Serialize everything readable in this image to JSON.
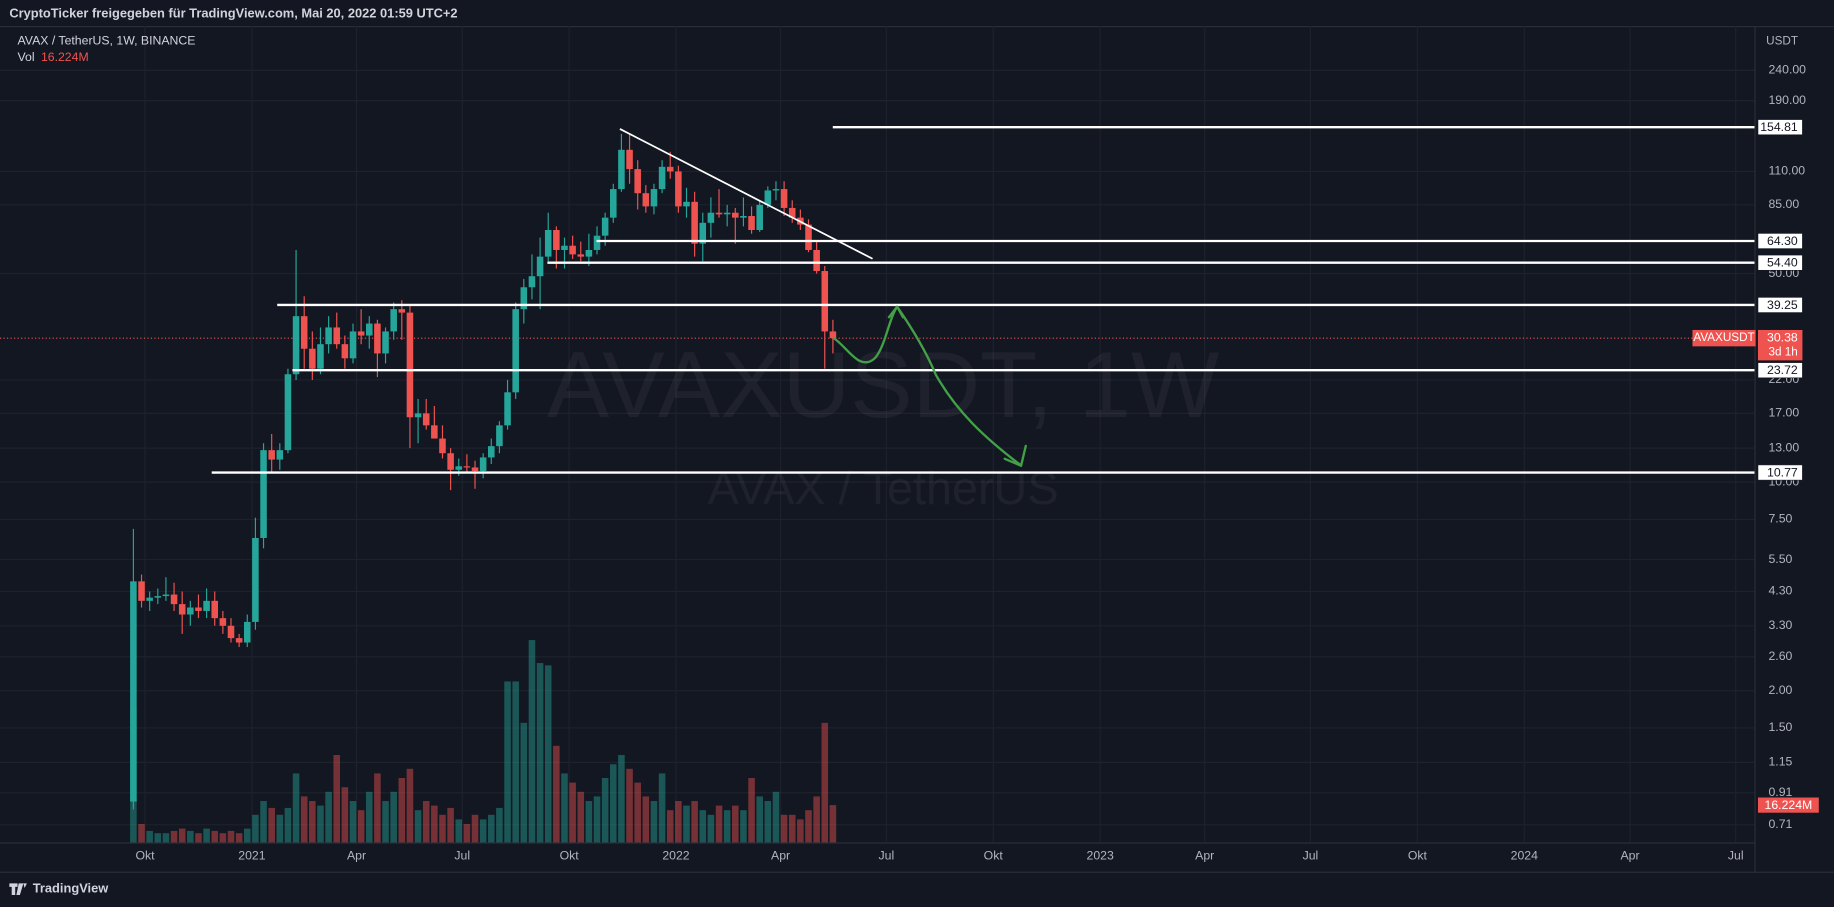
{
  "chart_data": {
    "type": "candlestick",
    "header": "CryptoTicker freigegeben für TradingView.com, Mai 20, 2022 01:59 UTC+2",
    "title": "AVAX / TetherUS, 1W, BINANCE",
    "volume_title": "Vol",
    "volume_label": "16.224M",
    "watermark": "AVAXUSDT, 1W",
    "watermark_sub": "AVAX / TetherUS",
    "y_axis_unit": "USDT",
    "footer": "TradingView",
    "symbol_label": "AVAXUSDT",
    "last_price": 30.38,
    "countdown": "3d 1h",
    "up_color": "#26a69a",
    "down_color": "#ef5350",
    "log_scale": true,
    "grid": true,
    "open": [
      0.85,
      4.65,
      4.0,
      4.1,
      4.15,
      4.2,
      3.9,
      3.6,
      3.8,
      3.7,
      4.0,
      3.5,
      3.3,
      3.0,
      2.9,
      3.4,
      6.5,
      12.8,
      11.9,
      12.8,
      23,
      36,
      28,
      24,
      29,
      33,
      29,
      26,
      32,
      31,
      34,
      27,
      32,
      38,
      37,
      16.5,
      17,
      15.5,
      14,
      12.5,
      11,
      11.3,
      11.2,
      10.9,
      12.1,
      13.2,
      15.5,
      20,
      38,
      45,
      49,
      57,
      70,
      60,
      62,
      58,
      57,
      60,
      67,
      77,
      96,
      130,
      112,
      93,
      84,
      96,
      114,
      110,
      84,
      87,
      63,
      74,
      80,
      79,
      80,
      77,
      78,
      70,
      85,
      95,
      96,
      83,
      77,
      73,
      60,
      51,
      32
    ],
    "high": [
      6.97,
      4.9,
      4.3,
      4.4,
      4.8,
      4.6,
      4.3,
      4.0,
      4.2,
      4.4,
      4.3,
      3.7,
      3.5,
      3.1,
      3.6,
      7.6,
      13.5,
      14.5,
      13.5,
      24,
      60,
      42,
      32,
      33,
      36,
      37,
      31,
      34,
      38,
      36,
      35,
      33,
      40,
      40.7,
      39,
      19,
      19,
      18,
      15.5,
      13,
      12,
      12.4,
      11.8,
      12.5,
      14,
      16,
      22,
      40,
      48,
      58,
      66,
      80,
      72,
      66,
      67,
      64,
      68,
      72,
      80,
      100,
      147,
      146,
      120,
      99,
      100,
      120,
      128,
      115,
      97,
      94,
      80,
      90,
      96,
      85,
      83,
      90,
      84,
      88,
      98,
      102,
      102,
      88,
      82,
      76,
      64,
      53,
      35
    ],
    "low": [
      0.8,
      3.8,
      3.7,
      3.9,
      4.0,
      3.7,
      3.1,
      3.3,
      3.5,
      3.5,
      3.3,
      3.1,
      2.9,
      2.8,
      2.8,
      3.2,
      6.0,
      10.8,
      11,
      12.5,
      22,
      24,
      22,
      23,
      27,
      28,
      24,
      25,
      29,
      28,
      22.5,
      25,
      30,
      30,
      13,
      13.5,
      15,
      14,
      12,
      9.4,
      10.5,
      10.8,
      9.5,
      10.3,
      11.5,
      12.5,
      15,
      19,
      34,
      41,
      38,
      55,
      52,
      52,
      56,
      55,
      53,
      58,
      62,
      74,
      94,
      100,
      82,
      80,
      79,
      93,
      104,
      80,
      77,
      57,
      55,
      66,
      77,
      72,
      63,
      72,
      68,
      69,
      83,
      88,
      78,
      74,
      70,
      59,
      50,
      24,
      27
    ],
    "close": [
      4.65,
      4.0,
      4.1,
      4.15,
      4.2,
      3.9,
      3.6,
      3.8,
      3.7,
      4.0,
      3.5,
      3.3,
      3.0,
      2.9,
      3.4,
      6.5,
      12.8,
      11.9,
      12.8,
      23,
      36,
      28,
      24,
      29,
      33,
      29,
      26,
      32,
      31,
      34,
      27,
      32,
      38,
      37,
      16.5,
      17,
      15.5,
      14,
      12.5,
      11,
      11.3,
      11.2,
      10.9,
      12.1,
      13.2,
      15.5,
      20,
      38,
      45,
      49,
      57,
      70,
      60,
      62,
      58,
      57,
      60,
      67,
      77,
      96,
      130,
      112,
      93,
      84,
      96,
      114,
      110,
      84,
      87,
      63,
      74,
      80,
      79,
      80,
      77,
      78,
      70,
      85,
      95,
      96,
      83,
      77,
      73,
      60,
      51,
      32,
      30.38
    ],
    "volume": [
      58,
      8,
      5,
      4,
      4,
      5,
      6,
      5,
      4,
      6,
      5,
      4,
      5,
      4,
      6,
      12,
      18,
      15,
      12,
      15,
      30,
      20,
      18,
      16,
      22,
      38,
      24,
      18,
      14,
      22,
      30,
      18,
      22,
      28,
      32,
      14,
      18,
      16,
      12,
      15,
      10,
      8,
      12,
      10,
      12,
      15,
      70,
      70,
      52,
      88,
      78,
      77,
      42,
      30,
      26,
      22,
      18,
      20,
      28,
      34,
      38,
      32,
      26,
      20,
      18,
      30,
      14,
      18,
      16,
      18,
      14,
      12,
      16,
      14,
      16,
      14,
      28,
      20,
      18,
      22,
      12,
      12,
      10,
      14,
      20,
      52,
      16.224
    ],
    "levels": [
      154.81,
      {
        "value": 64.3,
        "label": "64.30"
      },
      {
        "value": 54.4,
        "label": "54.40"
      },
      39.25,
      23.72,
      10.77
    ],
    "ylim": [
      0.62,
      338
    ],
    "yticks": [
      {
        "value": 240,
        "label": "240.00"
      },
      {
        "value": 190,
        "label": "190.00"
      },
      {
        "value": 110,
        "label": "110.00"
      },
      {
        "value": 85,
        "label": "85.00"
      },
      {
        "value": 50,
        "label": "50.00"
      },
      {
        "value": 22,
        "label": "22.00"
      },
      {
        "value": 17,
        "label": "17.00"
      },
      {
        "value": 13,
        "label": "13.00"
      },
      {
        "value": 10,
        "label": "10.00"
      },
      {
        "value": 7.5,
        "label": "7.50"
      },
      {
        "value": 5.5,
        "label": "5.50"
      },
      {
        "value": 4.3,
        "label": "4.30"
      },
      {
        "value": 3.3,
        "label": "3.30"
      },
      {
        "value": 2.6,
        "label": "2.60"
      },
      {
        "value": 2,
        "label": "2.00"
      },
      {
        "value": 1.5,
        "label": "1.50"
      },
      1.15,
      0.91,
      0.71
    ],
    "xlim": [
      -16.4,
      199.3
    ],
    "xticks": [
      {
        "value": 1.43,
        "label": "Okt"
      },
      {
        "value": 14.57,
        "label": "2021"
      },
      {
        "value": 27.43,
        "label": "Apr"
      },
      {
        "value": 40.43,
        "label": "Jul"
      },
      {
        "value": 53.57,
        "label": "Okt"
      },
      {
        "value": 66.71,
        "label": "2022"
      },
      {
        "value": 79.57,
        "label": "Apr"
      },
      {
        "value": 92.57,
        "label": "Jul"
      },
      {
        "value": 105.71,
        "label": "Okt"
      },
      {
        "value": 118.86,
        "label": "2023"
      },
      {
        "value": 131.71,
        "label": "Apr"
      },
      {
        "value": 144.71,
        "label": "Jul"
      },
      {
        "value": 157.86,
        "label": "Okt"
      },
      {
        "value": 171,
        "label": "2024"
      },
      {
        "value": 184,
        "label": "Apr"
      },
      {
        "value": 197,
        "label": "Jul"
      }
    ]
  }
}
